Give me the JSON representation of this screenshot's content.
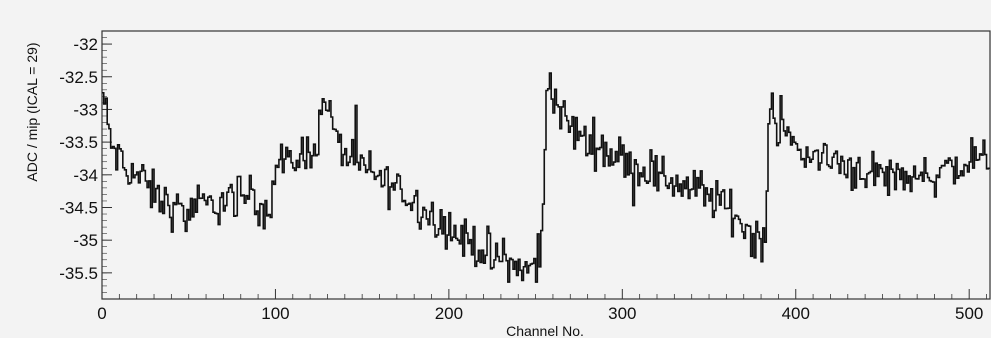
{
  "chart_data": {
    "type": "line",
    "xlabel": "Channel No.",
    "ylabel": "ADC / mip (ICAL = 29)",
    "xlim": [
      0,
      512
    ],
    "ylim": [
      -35.9,
      -31.8
    ],
    "xticks": [
      0,
      100,
      200,
      300,
      400,
      500
    ],
    "xtick_labels": [
      "0",
      "100",
      "200",
      "300",
      "400",
      "500"
    ],
    "yticks": [
      -32,
      -32.5,
      -33,
      -33.5,
      -34,
      -34.5,
      -35,
      -35.5
    ],
    "ytick_labels": [
      "-32",
      "-32.5",
      "-33",
      "-33.5",
      "-34",
      "-34.5",
      "-35",
      "-35.5"
    ],
    "grid": false,
    "style": "step histogram",
    "line_color": "#111111",
    "x_anchors": [
      0,
      2,
      5,
      10,
      20,
      30,
      40,
      50,
      60,
      70,
      80,
      90,
      98,
      100,
      110,
      120,
      126,
      128,
      135,
      150,
      170,
      190,
      210,
      230,
      245,
      253,
      255,
      256,
      258,
      262,
      270,
      290,
      310,
      330,
      350,
      365,
      375,
      383,
      384,
      386,
      390,
      400,
      420,
      450,
      480,
      500,
      512
    ],
    "y_anchors": [
      -32.7,
      -33.0,
      -33.5,
      -33.8,
      -34.0,
      -34.3,
      -34.5,
      -34.6,
      -34.5,
      -34.4,
      -34.3,
      -34.4,
      -34.5,
      -33.9,
      -33.8,
      -33.6,
      -33.3,
      -32.7,
      -33.5,
      -33.9,
      -34.2,
      -34.6,
      -35.0,
      -35.3,
      -35.5,
      -35.3,
      -34.4,
      -32.8,
      -32.5,
      -32.9,
      -33.3,
      -33.6,
      -33.9,
      -34.1,
      -34.3,
      -34.6,
      -34.9,
      -35.0,
      -33.6,
      -32.8,
      -33.3,
      -33.6,
      -33.8,
      -34.0,
      -34.0,
      -33.8,
      -33.75
    ]
  }
}
